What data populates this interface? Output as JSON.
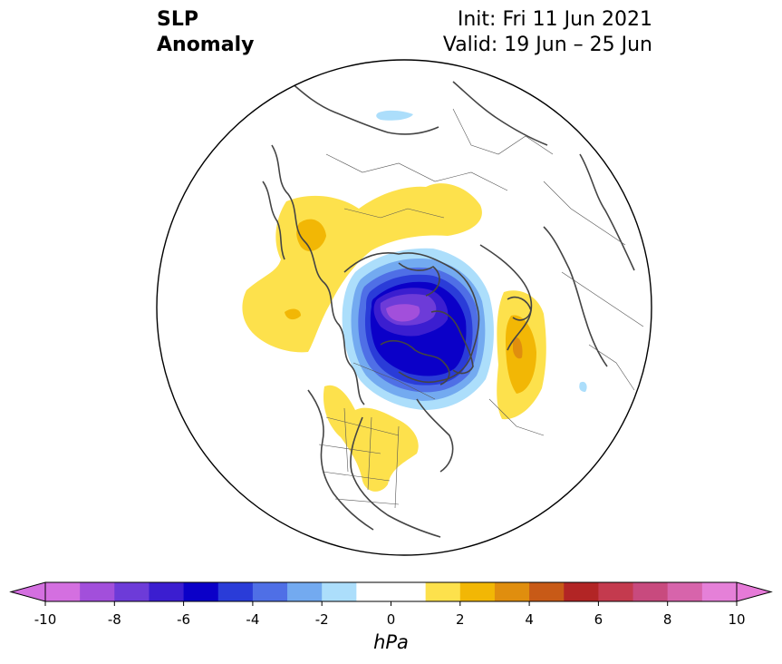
{
  "title": {
    "left_line1": "SLP",
    "left_line2": "Anomaly",
    "init": "Init: Fri 11 Jun 2021",
    "valid": "Valid: 19 Jun – 25 Jun"
  },
  "colorbar": {
    "unit": "hPa",
    "tick_labels": [
      "-10",
      "-8",
      "-6",
      "-4",
      "-2",
      "0",
      "2",
      "4",
      "6",
      "8",
      "10"
    ],
    "min": -10,
    "max": 10,
    "step": 1,
    "colors": [
      "#d46fe0",
      "#a24fdb",
      "#6d3bd8",
      "#3b1ed0",
      "#0b00c8",
      "#2a3cd8",
      "#4f6fe6",
      "#73aaf0",
      "#acdefb",
      "#ffffff",
      "#ffffff",
      "#fde14c",
      "#f2b705",
      "#e08e0e",
      "#c85a17",
      "#b22525",
      "#c43a4e",
      "#c84a7e",
      "#d764ab",
      "#e580d8"
    ],
    "extend_low_color": "#d46fe0",
    "extend_high_color": "#e67ad8"
  },
  "map": {
    "projection": "north-polar-stereographic",
    "anomaly_colors": {
      "negative_weak": "#acdefb",
      "negative_mod": "#4f6fe6",
      "negative_strong": "#0b00c8",
      "negative_core": "#a24fdb",
      "positive_weak": "#fde14c",
      "positive_mod": "#f2b705",
      "positive_strong": "#e08e0e"
    }
  }
}
